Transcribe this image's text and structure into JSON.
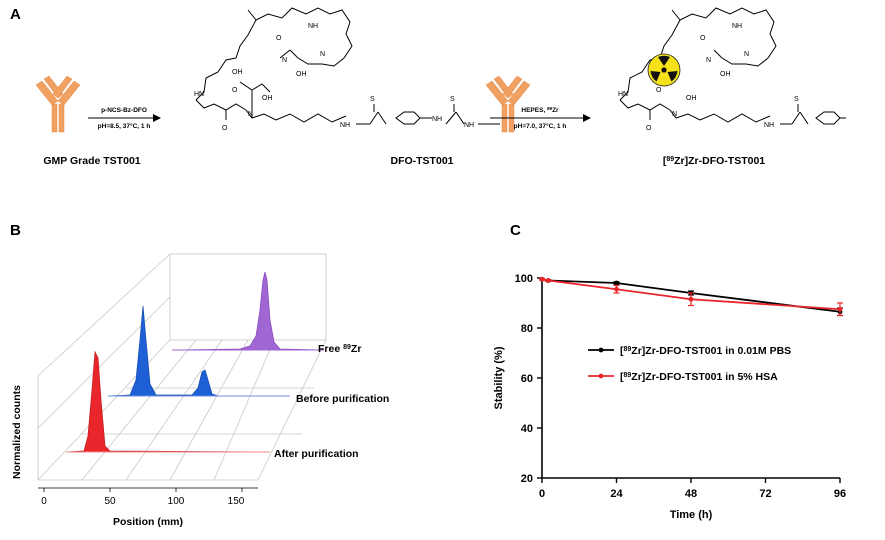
{
  "panels": {
    "a": "A",
    "b": "B",
    "c": "C"
  },
  "scheme": {
    "step1_reagent": "p-NCS-Bz-DFO",
    "step1_conditions": "pH=8.5, 37°C, 1 h",
    "step2_reagent": "HEPES, ",
    "step2_reagent_sup": "89",
    "step2_reagent_suffix": "Zr",
    "step2_conditions": "pH=7.0, 37°C, 1 h",
    "label_antibody": "GMP Grade TST001",
    "label_conjugate": "DFO-TST001",
    "label_radio_pre": "[",
    "label_radio_sup": "89",
    "label_radio_post": "Zr]Zr-DFO-TST001",
    "atoms": {
      "NH": "NH",
      "O": "O",
      "OH": "OH",
      "N": "N",
      "S": "S",
      "HN": "HN"
    }
  },
  "chromatogram": {
    "ylabel": "Normalized counts",
    "xlabel": "Position (mm)",
    "xticks": [
      "0",
      "50",
      "100",
      "150"
    ],
    "traces": [
      {
        "label_pre": "Free ",
        "label_sup": "89",
        "label_post": "Zr",
        "color": "#a066d3"
      },
      {
        "label_pre": "Before purification",
        "label_sup": "",
        "label_post": "",
        "color": "#1f5fd6"
      },
      {
        "label_pre": "After purification",
        "label_sup": "",
        "label_post": "",
        "color": "#e8262b"
      }
    ]
  },
  "chart_data": {
    "type": "line",
    "x": [
      0,
      2,
      24,
      48,
      96
    ],
    "xlabel": "Time (h)",
    "ylabel": "Stability (%)",
    "xlim": [
      0,
      96
    ],
    "ylim": [
      20,
      100
    ],
    "xticks": [
      0,
      24,
      48,
      72,
      96
    ],
    "yticks": [
      20,
      40,
      60,
      80,
      100
    ],
    "grid": false,
    "legend_position": "center",
    "series": [
      {
        "name_pre": "[",
        "name_sup": "89",
        "name_post": "Zr]Zr-DFO-TST001 in 0.01M PBS",
        "color": "#000000",
        "x": [
          0,
          2,
          24,
          48,
          96
        ],
        "values": [
          99.5,
          99.0,
          98.0,
          94.0,
          86.5
        ],
        "err": [
          0.3,
          0.3,
          0.5,
          0.8,
          1.5
        ]
      },
      {
        "name_pre": "[",
        "name_sup": "89",
        "name_post": "Zr]Zr-DFO-TST001 in 5% HSA",
        "color": "#e8262b",
        "x": [
          0,
          2,
          24,
          48,
          96
        ],
        "values": [
          99.5,
          99.0,
          95.5,
          91.5,
          87.5
        ],
        "err": [
          0.3,
          0.4,
          1.5,
          2.5,
          2.5
        ]
      }
    ]
  }
}
